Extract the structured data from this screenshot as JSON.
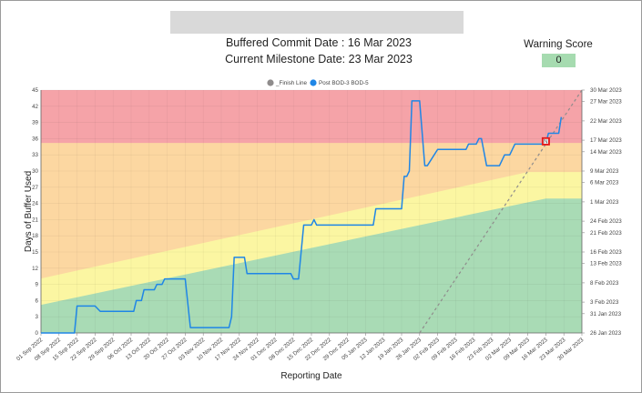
{
  "header": {
    "buffered_commit": "Buffered Commit Date : 16 Mar 2023",
    "current_milestone": "Current Milestone Date: 23 Mar 2023"
  },
  "warning": {
    "label": "Warning Score",
    "value": "0"
  },
  "colors": {
    "red_zone": "#f5a3a8",
    "orange_zone": "#fcd7a1",
    "yellow_zone": "#fbf6a2",
    "green_zone": "#a9dbb5",
    "series_line": "#1f86e6",
    "finish_line": "#8f8c8c",
    "marker": "#e31b1b"
  },
  "chart_data": {
    "type": "line",
    "xlabel": "Reporting Date",
    "ylabel": "Days of Buffer Used",
    "ylim": [
      0,
      45
    ],
    "yticks": [
      "0",
      "3",
      "6",
      "9",
      "12",
      "15",
      "18",
      "21",
      "24",
      "27",
      "30",
      "33",
      "36",
      "39",
      "42",
      "45"
    ],
    "x_start": "2022-09-01",
    "x_end": "2023-03-30",
    "xticks": [
      {
        "date": "2022-09-01",
        "label": "01 Sep 2022"
      },
      {
        "date": "2022-09-08",
        "label": "08 Sep 2022"
      },
      {
        "date": "2022-09-15",
        "label": "15 Sep 2022"
      },
      {
        "date": "2022-09-22",
        "label": "22 Sep 2022"
      },
      {
        "date": "2022-09-29",
        "label": "29 Sep 2022"
      },
      {
        "date": "2022-10-06",
        "label": "06 Oct 2022"
      },
      {
        "date": "2022-10-13",
        "label": "13 Oct 2022"
      },
      {
        "date": "2022-10-20",
        "label": "20 Oct 2022"
      },
      {
        "date": "2022-10-27",
        "label": "27 Oct 2022"
      },
      {
        "date": "2022-11-03",
        "label": "03 Nov 2022"
      },
      {
        "date": "2022-11-10",
        "label": "10 Nov 2022"
      },
      {
        "date": "2022-11-17",
        "label": "17 Nov 2022"
      },
      {
        "date": "2022-11-24",
        "label": "24 Nov 2022"
      },
      {
        "date": "2022-12-01",
        "label": "01 Dec 2022"
      },
      {
        "date": "2022-12-08",
        "label": "08 Dec 2022"
      },
      {
        "date": "2022-12-15",
        "label": "15 Dec 2022"
      },
      {
        "date": "2022-12-22",
        "label": "22 Dec 2022"
      },
      {
        "date": "2022-12-29",
        "label": "29 Dec 2022"
      },
      {
        "date": "2023-01-05",
        "label": "05 Jan 2023"
      },
      {
        "date": "2023-01-12",
        "label": "12 Jan 2023"
      },
      {
        "date": "2023-01-19",
        "label": "19 Jan 2023"
      },
      {
        "date": "2023-01-26",
        "label": "26 Jan 2023"
      },
      {
        "date": "2023-02-02",
        "label": "02 Feb 2023"
      },
      {
        "date": "2023-02-09",
        "label": "09 Feb 2023"
      },
      {
        "date": "2023-02-16",
        "label": "16 Feb 2023"
      },
      {
        "date": "2023-02-23",
        "label": "23 Feb 2023"
      },
      {
        "date": "2023-03-02",
        "label": "02 Mar 2023"
      },
      {
        "date": "2023-03-09",
        "label": "09 Mar 2023"
      },
      {
        "date": "2023-03-16",
        "label": "16 Mar 2023"
      },
      {
        "date": "2023-03-23",
        "label": "23 Mar 2023"
      },
      {
        "date": "2023-03-30",
        "label": "30 Mar 2023"
      }
    ],
    "y2_range": [
      "2023-01-26",
      "2023-03-30"
    ],
    "y2ticks": [
      {
        "date": "2023-01-26",
        "label": "26 Jan 2023"
      },
      {
        "date": "2023-01-31",
        "label": "31 Jan 2023"
      },
      {
        "date": "2023-02-03",
        "label": "3 Feb 2023"
      },
      {
        "date": "2023-02-08",
        "label": "8 Feb 2023"
      },
      {
        "date": "2023-02-13",
        "label": "13 Feb 2023"
      },
      {
        "date": "2023-02-16",
        "label": "16 Feb 2023"
      },
      {
        "date": "2023-02-21",
        "label": "21 Feb 2023"
      },
      {
        "date": "2023-02-24",
        "label": "24 Feb 2023"
      },
      {
        "date": "2023-03-01",
        "label": "1 Mar 2023"
      },
      {
        "date": "2023-03-06",
        "label": "6 Mar 2023"
      },
      {
        "date": "2023-03-09",
        "label": "9 Mar 2023"
      },
      {
        "date": "2023-03-14",
        "label": "14 Mar 2023"
      },
      {
        "date": "2023-03-17",
        "label": "17 Mar 2023"
      },
      {
        "date": "2023-03-22",
        "label": "22 Mar 2023"
      },
      {
        "date": "2023-03-27",
        "label": "27 Mar 2023"
      },
      {
        "date": "2023-03-30",
        "label": "30 Mar 2023"
      }
    ],
    "zones": {
      "red_from": 35.2,
      "orange_yellow_boundary": [
        {
          "date": "2022-09-01",
          "value": 10.1
        },
        {
          "date": "2023-03-09",
          "value": 29.8
        },
        {
          "date": "2023-03-30",
          "value": 29.8
        }
      ],
      "yellow_green_boundary": [
        {
          "date": "2022-09-01",
          "value": 5.2
        },
        {
          "date": "2023-03-16",
          "value": 24.9
        },
        {
          "date": "2023-03-30",
          "value": 24.9
        }
      ]
    },
    "legend": [
      {
        "name": "_Finish Line",
        "color": "#8f8c8c"
      },
      {
        "name": "Post BOD-3 BOD-5",
        "color": "#1f86e6"
      }
    ],
    "legend_position": "top-center",
    "series": [
      {
        "name": "_Finish Line",
        "style": "dashed",
        "points": [
          {
            "date": "2023-01-26",
            "value": 0
          },
          {
            "date": "2023-03-30",
            "value": 45
          }
        ]
      },
      {
        "name": "Post BOD-3 BOD-5",
        "points": [
          {
            "date": "2022-09-01",
            "value": 0
          },
          {
            "date": "2022-09-14",
            "value": 0
          },
          {
            "date": "2022-09-15",
            "value": 5
          },
          {
            "date": "2022-09-22",
            "value": 5
          },
          {
            "date": "2022-09-24",
            "value": 4
          },
          {
            "date": "2022-10-07",
            "value": 4
          },
          {
            "date": "2022-10-08",
            "value": 6
          },
          {
            "date": "2022-10-10",
            "value": 6
          },
          {
            "date": "2022-10-11",
            "value": 8
          },
          {
            "date": "2022-10-15",
            "value": 8
          },
          {
            "date": "2022-10-16",
            "value": 9
          },
          {
            "date": "2022-10-18",
            "value": 9
          },
          {
            "date": "2022-10-19",
            "value": 10
          },
          {
            "date": "2022-10-27",
            "value": 10
          },
          {
            "date": "2022-10-29",
            "value": 1
          },
          {
            "date": "2022-11-13",
            "value": 1
          },
          {
            "date": "2022-11-14",
            "value": 3
          },
          {
            "date": "2022-11-15",
            "value": 14
          },
          {
            "date": "2022-11-19",
            "value": 14
          },
          {
            "date": "2022-11-20",
            "value": 11
          },
          {
            "date": "2022-12-07",
            "value": 11
          },
          {
            "date": "2022-12-08",
            "value": 10
          },
          {
            "date": "2022-12-10",
            "value": 10
          },
          {
            "date": "2022-12-12",
            "value": 20
          },
          {
            "date": "2022-12-15",
            "value": 20
          },
          {
            "date": "2022-12-16",
            "value": 21
          },
          {
            "date": "2022-12-17",
            "value": 20
          },
          {
            "date": "2023-01-08",
            "value": 20
          },
          {
            "date": "2023-01-09",
            "value": 23
          },
          {
            "date": "2023-01-19",
            "value": 23
          },
          {
            "date": "2023-01-20",
            "value": 29
          },
          {
            "date": "2023-01-21",
            "value": 29
          },
          {
            "date": "2023-01-22",
            "value": 30
          },
          {
            "date": "2023-01-23",
            "value": 43
          },
          {
            "date": "2023-01-26",
            "value": 43
          },
          {
            "date": "2023-01-28",
            "value": 31
          },
          {
            "date": "2023-01-29",
            "value": 31
          },
          {
            "date": "2023-02-02",
            "value": 34
          },
          {
            "date": "2023-02-13",
            "value": 34
          },
          {
            "date": "2023-02-14",
            "value": 35
          },
          {
            "date": "2023-02-17",
            "value": 35
          },
          {
            "date": "2023-02-18",
            "value": 36
          },
          {
            "date": "2023-02-19",
            "value": 36
          },
          {
            "date": "2023-02-21",
            "value": 31
          },
          {
            "date": "2023-02-26",
            "value": 31
          },
          {
            "date": "2023-02-28",
            "value": 33
          },
          {
            "date": "2023-03-02",
            "value": 33
          },
          {
            "date": "2023-03-04",
            "value": 35
          },
          {
            "date": "2023-03-13",
            "value": 35
          },
          {
            "date": "2023-03-16",
            "value": 35
          },
          {
            "date": "2023-03-17",
            "value": 37
          },
          {
            "date": "2023-03-21",
            "value": 37
          },
          {
            "date": "2023-03-22",
            "value": 40
          }
        ]
      }
    ],
    "markers": [
      {
        "date": "2023-03-16",
        "value": 35.5,
        "label": "N",
        "color": "#e31b1b"
      }
    ]
  }
}
